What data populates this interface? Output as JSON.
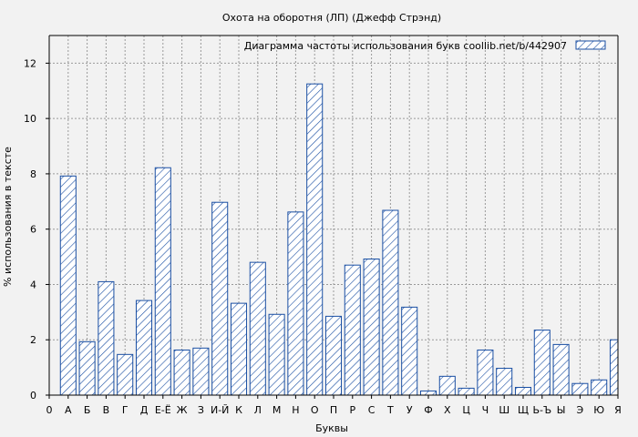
{
  "chart_data": {
    "type": "bar",
    "title": "Охота на оборотня (ЛП) (Джефф Стрэнд)",
    "xlabel": "Буквы",
    "ylabel": "% использования в тексте",
    "legend": {
      "text": "Диаграмма частоты использования букв  coollib.net/b/442907",
      "position": "top-right"
    },
    "grid": true,
    "ylim": [
      0,
      13
    ],
    "yticks": [
      0,
      2,
      4,
      6,
      8,
      10,
      12
    ],
    "x_tick_labels": [
      "0",
      "А",
      "Б",
      "В",
      "Г",
      "Д",
      "Е-Ё",
      "Ж",
      "З",
      "И-Й",
      "К",
      "Л",
      "М",
      "Н",
      "О",
      "П",
      "Р",
      "С",
      "Т",
      "У",
      "Ф",
      "Х",
      "Ц",
      "Ч",
      "Ш",
      "Щ",
      "Ь-Ъ",
      "Ы",
      "Э",
      "Ю",
      "Я"
    ],
    "categories": [
      "А",
      "Б",
      "В",
      "Г",
      "Д",
      "Е-Ё",
      "Ж",
      "З",
      "И-Й",
      "К",
      "Л",
      "М",
      "Н",
      "О",
      "П",
      "Р",
      "С",
      "Т",
      "У",
      "Ф",
      "Х",
      "Ц",
      "Ч",
      "Ш",
      "Щ",
      "Ь-Ъ",
      "Ы",
      "Э",
      "Ю",
      "Я"
    ],
    "values": [
      7.92,
      1.93,
      4.1,
      1.47,
      3.42,
      8.22,
      1.63,
      1.7,
      6.97,
      3.32,
      4.8,
      2.92,
      6.62,
      11.25,
      2.85,
      4.7,
      4.92,
      6.68,
      3.18,
      0.15,
      0.68,
      0.25,
      1.63,
      0.97,
      0.28,
      2.35,
      1.83,
      0.42,
      0.55,
      2.0
    ],
    "colors": {
      "bar_stroke": "#1a4fa3",
      "bar_fill": "#ffffff",
      "grid": "#9a9a9a",
      "background": "#f2f2f2"
    }
  }
}
